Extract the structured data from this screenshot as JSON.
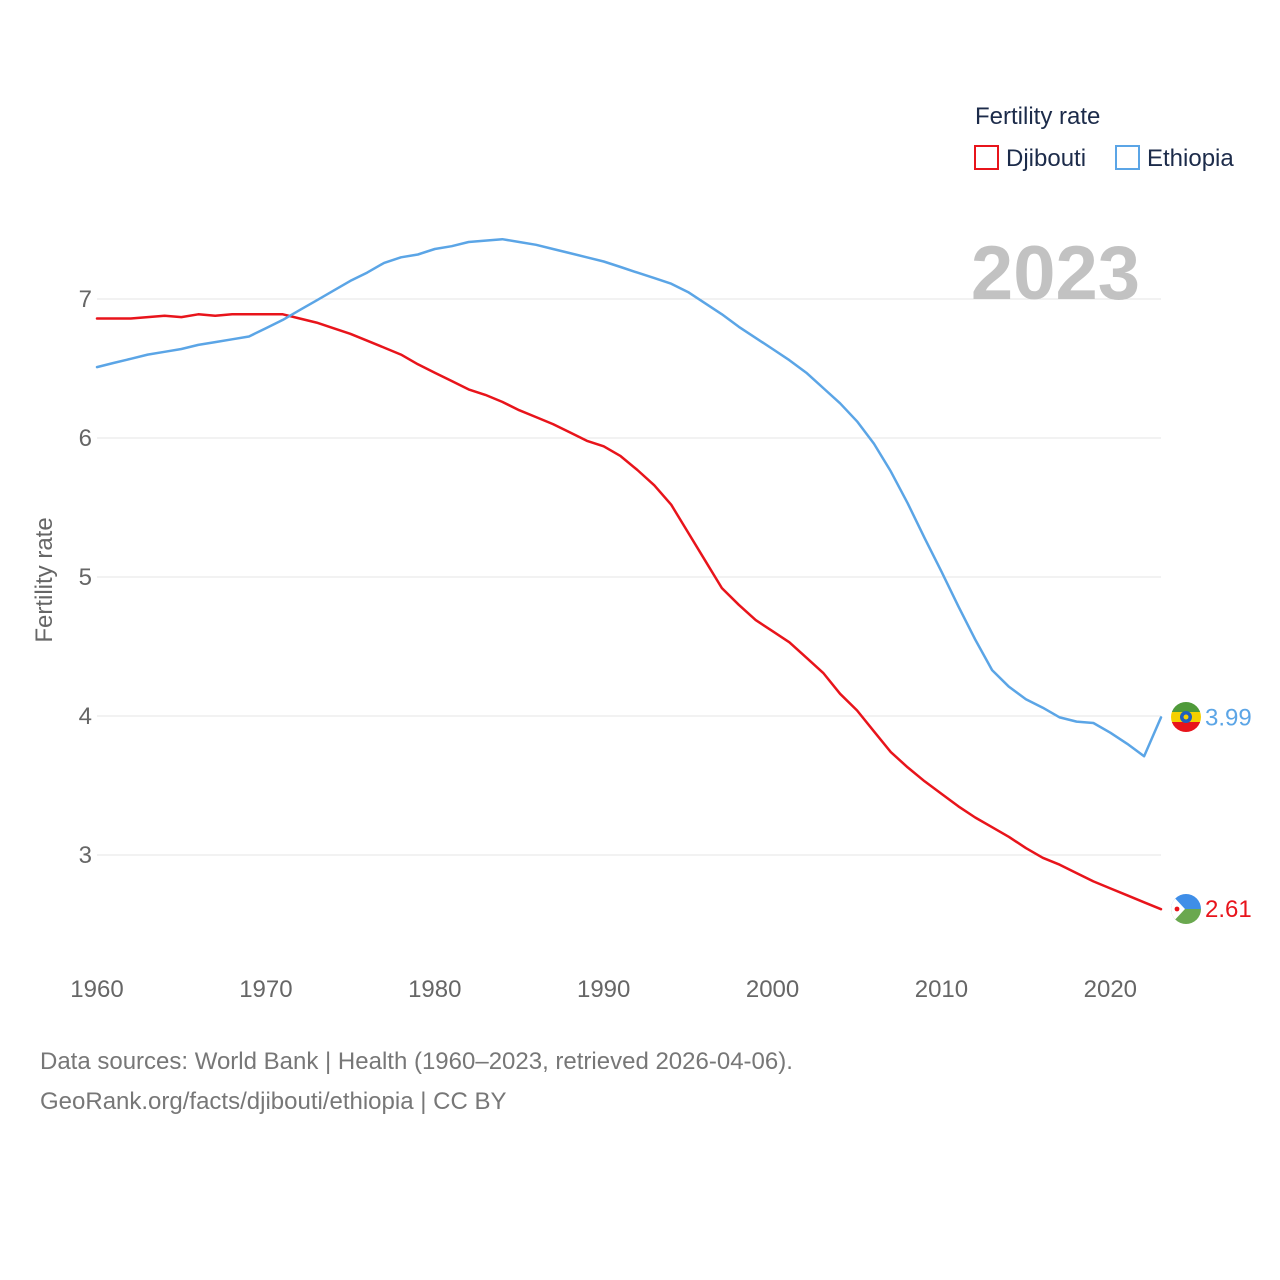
{
  "chart_data": {
    "type": "line",
    "year_label": "2023",
    "ylabel": "Fertility rate",
    "xlabel": "",
    "xlim": [
      1960,
      2023
    ],
    "ylim": [
      2.45,
      7.6
    ],
    "x_ticks": [
      1960,
      1970,
      1980,
      1990,
      2000,
      2010,
      2020
    ],
    "y_ticks": [
      3,
      4,
      5,
      6,
      7
    ],
    "grid": "horizontal",
    "legend": {
      "title": "Fertility rate",
      "placement": "top-right",
      "items": [
        {
          "label": "Djibouti",
          "color": "#e8141b"
        },
        {
          "label": "Ethiopia",
          "color": "#5ba5e6"
        }
      ]
    },
    "series": [
      {
        "name": "Djibouti",
        "color": "#e8141b",
        "end_label": "2.61",
        "x": [
          1960,
          1961,
          1962,
          1963,
          1964,
          1965,
          1966,
          1967,
          1968,
          1969,
          1970,
          1971,
          1972,
          1973,
          1974,
          1975,
          1976,
          1977,
          1978,
          1979,
          1980,
          1981,
          1982,
          1983,
          1984,
          1985,
          1986,
          1987,
          1988,
          1989,
          1990,
          1991,
          1992,
          1993,
          1994,
          1995,
          1996,
          1997,
          1998,
          1999,
          2000,
          2001,
          2002,
          2003,
          2004,
          2005,
          2006,
          2007,
          2008,
          2009,
          2010,
          2011,
          2012,
          2013,
          2014,
          2015,
          2016,
          2017,
          2018,
          2019,
          2020,
          2021,
          2022,
          2023
        ],
        "values": [
          6.86,
          6.86,
          6.86,
          6.87,
          6.88,
          6.87,
          6.89,
          6.88,
          6.89,
          6.89,
          6.89,
          6.89,
          6.86,
          6.83,
          6.79,
          6.75,
          6.7,
          6.65,
          6.6,
          6.53,
          6.47,
          6.41,
          6.35,
          6.31,
          6.26,
          6.2,
          6.15,
          6.1,
          6.04,
          5.98,
          5.94,
          5.87,
          5.77,
          5.66,
          5.52,
          5.32,
          5.12,
          4.92,
          4.8,
          4.69,
          4.61,
          4.53,
          4.42,
          4.31,
          4.16,
          4.04,
          3.89,
          3.74,
          3.63,
          3.53,
          3.44,
          3.35,
          3.27,
          3.2,
          3.13,
          3.05,
          2.98,
          2.93,
          2.87,
          2.81,
          2.76,
          2.71,
          2.66,
          2.61
        ]
      },
      {
        "name": "Ethiopia",
        "color": "#5ba5e6",
        "end_label": "3.99",
        "x": [
          1960,
          1961,
          1962,
          1963,
          1964,
          1965,
          1966,
          1967,
          1968,
          1969,
          1970,
          1971,
          1972,
          1973,
          1974,
          1975,
          1976,
          1977,
          1978,
          1979,
          1980,
          1981,
          1982,
          1983,
          1984,
          1985,
          1986,
          1987,
          1988,
          1989,
          1990,
          1991,
          1992,
          1993,
          1994,
          1995,
          1996,
          1997,
          1998,
          1999,
          2000,
          2001,
          2002,
          2003,
          2004,
          2005,
          2006,
          2007,
          2008,
          2009,
          2010,
          2011,
          2012,
          2013,
          2014,
          2015,
          2016,
          2017,
          2018,
          2019,
          2020,
          2021,
          2022,
          2023
        ],
        "values": [
          6.51,
          6.54,
          6.57,
          6.6,
          6.62,
          6.64,
          6.67,
          6.69,
          6.71,
          6.73,
          6.79,
          6.85,
          6.92,
          6.99,
          7.06,
          7.13,
          7.19,
          7.26,
          7.3,
          7.32,
          7.36,
          7.38,
          7.41,
          7.42,
          7.43,
          7.41,
          7.39,
          7.36,
          7.33,
          7.3,
          7.27,
          7.23,
          7.19,
          7.15,
          7.11,
          7.05,
          6.97,
          6.89,
          6.8,
          6.72,
          6.64,
          6.56,
          6.47,
          6.36,
          6.25,
          6.12,
          5.96,
          5.76,
          5.53,
          5.28,
          5.04,
          4.79,
          4.55,
          4.33,
          4.21,
          4.12,
          4.06,
          3.99,
          3.96,
          3.95,
          3.88,
          3.8,
          3.71,
          3.99
        ]
      }
    ]
  },
  "footer": {
    "line1": "Data sources: World Bank | Health (1960–2023, retrieved 2026-04-06).",
    "line2": "GeoRank.org/facts/djibouti/ethiopia | CC BY"
  }
}
